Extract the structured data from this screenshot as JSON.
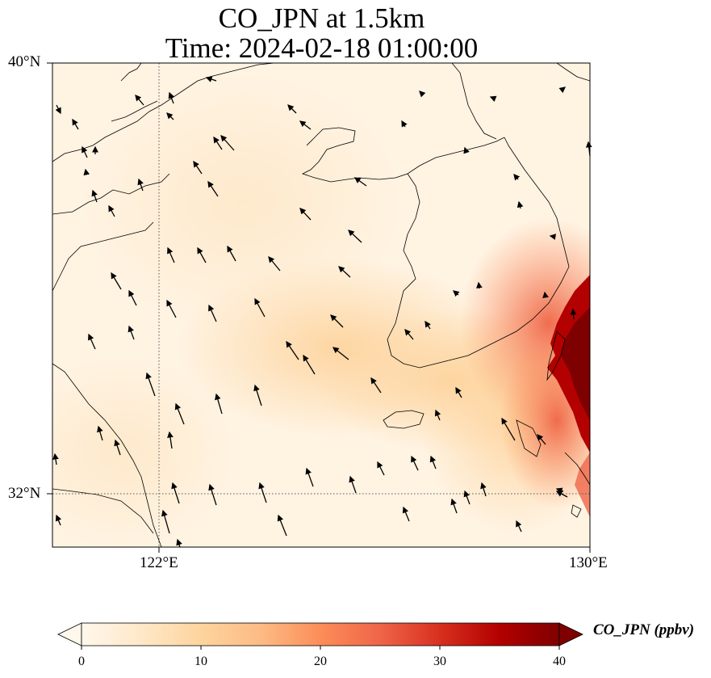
{
  "title": {
    "line1": "CO_JPN at 1.5km",
    "line2": "Time: 2024-02-18 01:00:00"
  },
  "axes": {
    "lat_labels": [
      "40°N",
      "32°N"
    ],
    "lon_labels": [
      "122°E",
      "130°E"
    ],
    "lat_range": [
      31,
      40
    ],
    "lon_range": [
      120,
      130
    ],
    "gridlines": "dotted at 32°N and 122°E"
  },
  "colorbar": {
    "label": "CO_JPN (ppbv)",
    "ticks": [
      "0",
      "10",
      "20",
      "30",
      "40"
    ],
    "range": [
      0,
      40
    ],
    "colormap": "OrRd",
    "extend": "both",
    "stops": [
      "#fff7ec",
      "#fee8c8",
      "#fdd49e",
      "#fdbb84",
      "#fc8d59",
      "#ef6548",
      "#d7301f",
      "#b30000",
      "#7f0000"
    ]
  },
  "field": {
    "description_values": "CO concentration field",
    "high_region": "east of Korean peninsula near 129-130°E, 33-36°N",
    "moderate_plume": "Yellow Sea to southern Korea, ~8-15 ppbv"
  }
}
